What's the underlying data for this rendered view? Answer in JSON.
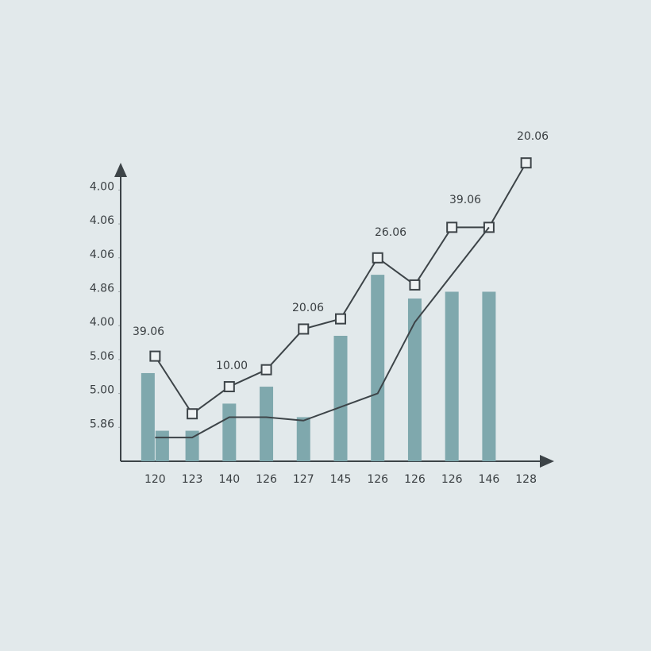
{
  "chart_data": {
    "type": "bar-line",
    "categories": [
      "120",
      "123",
      "140",
      "126",
      "127",
      "145",
      "126",
      "126",
      "126",
      "146",
      "128"
    ],
    "series": [
      {
        "type": "bar",
        "color": "#7fa8ad",
        "values": [
          2.6,
          0.9,
          1.7,
          2.2,
          1.3,
          3.7,
          5.5,
          4.8,
          5.0,
          5.0,
          null
        ]
      },
      {
        "type": "bar",
        "color": "#7fa8ad",
        "values": [
          0.9,
          null,
          null,
          null,
          null,
          null,
          null,
          null,
          null,
          null,
          null
        ]
      },
      {
        "type": "line",
        "color": "#3d4448",
        "marker": "square",
        "values": [
          3.1,
          1.4,
          2.2,
          2.7,
          3.9,
          4.2,
          6.0,
          5.2,
          6.9,
          6.9,
          8.8
        ]
      },
      {
        "type": "line",
        "color": "#3d4448",
        "values": [
          0.7,
          0.7,
          1.3,
          1.3,
          1.2,
          1.6,
          2.0,
          4.1,
          5.5,
          6.9,
          null
        ]
      }
    ],
    "annotations": [
      "39.06",
      "10.00",
      "20.06",
      "26.06",
      "39.06",
      "20.06"
    ],
    "ylim": [
      0,
      8.5
    ],
    "yticks": [
      {
        "value": 1,
        "label": "5.86"
      },
      {
        "value": 2,
        "label": "5.00"
      },
      {
        "value": 3,
        "label": "5.06"
      },
      {
        "value": 4,
        "label": "4.00"
      },
      {
        "value": 5,
        "label": "4.86"
      },
      {
        "value": 6,
        "label": "4.06"
      },
      {
        "value": 7,
        "label": "4.06"
      },
      {
        "value": 8,
        "label": "4.00"
      }
    ],
    "grid": false
  }
}
